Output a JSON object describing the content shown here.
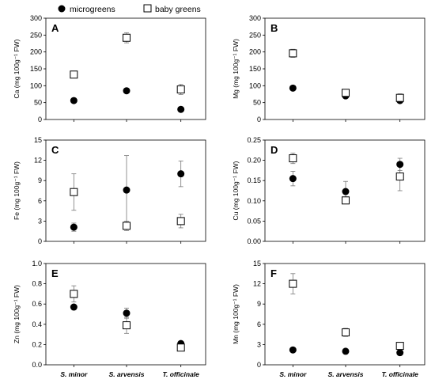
{
  "legend": [
    {
      "label": "microgreens",
      "marker": "filled-circle"
    },
    {
      "label": "baby greens",
      "marker": "open-square"
    }
  ],
  "categories": [
    "S. minor",
    "S. arvensis",
    "T. officinale"
  ],
  "chart_data": [
    {
      "type": "scatter",
      "panel": "A",
      "ylabel": "Ca (mg 100g⁻¹ FW)",
      "ylim": [
        0,
        300
      ],
      "yticks": [
        "0",
        "50",
        "100",
        "150",
        "200",
        "250",
        "300"
      ],
      "series": [
        {
          "name": "microgreens",
          "values": [
            56,
            85,
            30
          ],
          "errors": [
            0,
            0,
            0
          ]
        },
        {
          "name": "baby greens",
          "values": [
            133,
            242,
            89
          ],
          "errors": [
            6,
            15,
            15
          ]
        }
      ]
    },
    {
      "type": "scatter",
      "panel": "B",
      "ylabel": "Mg (mg 100g⁻¹ FW)",
      "ylim": [
        0,
        300
      ],
      "yticks": [
        "0",
        "50",
        "100",
        "150",
        "200",
        "250",
        "300"
      ],
      "series": [
        {
          "name": "microgreens",
          "values": [
            93,
            70,
            56
          ],
          "errors": [
            0,
            0,
            0
          ]
        },
        {
          "name": "baby greens",
          "values": [
            196,
            79,
            64
          ],
          "errors": [
            12,
            10,
            12
          ]
        }
      ]
    },
    {
      "type": "scatter",
      "panel": "C",
      "ylabel": "Fe (mg 100g⁻¹ FW)",
      "ylim": [
        0,
        15
      ],
      "yticks": [
        "0",
        "3",
        "6",
        "9",
        "12",
        "15"
      ],
      "series": [
        {
          "name": "microgreens",
          "values": [
            2.1,
            7.6,
            10.0
          ],
          "errors": [
            0.6,
            5.1,
            1.9
          ]
        },
        {
          "name": "baby greens",
          "values": [
            7.3,
            2.3,
            3.0
          ],
          "errors": [
            2.7,
            0.7,
            1.0
          ]
        }
      ]
    },
    {
      "type": "scatter",
      "panel": "D",
      "ylabel": "Cu (mg 100g⁻¹ FW)",
      "ylim": [
        0,
        0.25
      ],
      "yticks": [
        "0.00",
        "0.05",
        "0.10",
        "0.15",
        "0.20",
        "0.25"
      ],
      "series": [
        {
          "name": "microgreens",
          "values": [
            0.155,
            0.123,
            0.19
          ],
          "errors": [
            0.018,
            0.025,
            0.015
          ]
        },
        {
          "name": "baby greens",
          "values": [
            0.205,
            0.101,
            0.16
          ],
          "errors": [
            0.013,
            0.008,
            0.035
          ]
        }
      ]
    },
    {
      "type": "scatter",
      "panel": "E",
      "ylabel": "Zn (mg 100g⁻¹ FW)",
      "ylim": [
        0,
        1.0
      ],
      "yticks": [
        "0.0",
        "0.2",
        "0.4",
        "0.6",
        "0.8",
        "1.0"
      ],
      "series": [
        {
          "name": "microgreens",
          "values": [
            0.57,
            0.51,
            0.21
          ],
          "errors": [
            0,
            0.05,
            0
          ]
        },
        {
          "name": "baby greens",
          "values": [
            0.7,
            0.39,
            0.17
          ],
          "errors": [
            0.08,
            0.08,
            0.03
          ]
        }
      ]
    },
    {
      "type": "scatter",
      "panel": "F",
      "ylabel": "Mn (mg 100g⁻¹ FW)",
      "ylim": [
        0,
        15
      ],
      "yticks": [
        "0",
        "3",
        "6",
        "9",
        "12",
        "15"
      ],
      "series": [
        {
          "name": "microgreens",
          "values": [
            2.2,
            2.0,
            1.8
          ],
          "errors": [
            0,
            0,
            0
          ]
        },
        {
          "name": "baby greens",
          "values": [
            12.0,
            4.8,
            2.8
          ],
          "errors": [
            1.5,
            0.6,
            0.3
          ]
        }
      ]
    }
  ]
}
